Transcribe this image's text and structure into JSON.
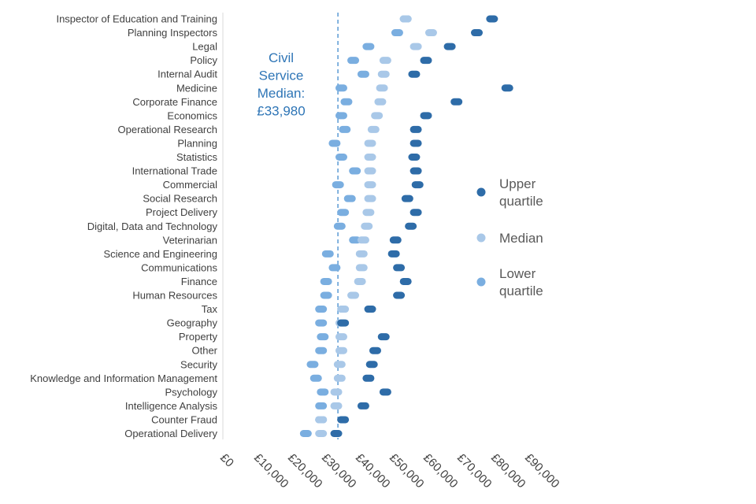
{
  "chart_data": {
    "type": "scatter",
    "categories": [
      "Inspector of Education and Training",
      "Planning Inspectors",
      "Legal",
      "Policy",
      "Internal Audit",
      "Medicine",
      "Corporate Finance",
      "Economics",
      "Operational Research",
      "Planning",
      "Statistics",
      "International Trade",
      "Commercial",
      "Social Research",
      "Project Delivery",
      "Digital, Data and Technology",
      "Veterinarian",
      "Science and Engineering",
      "Communications",
      "Finance",
      "Human Resources",
      "Tax",
      "Geography",
      "Property",
      "Other",
      "Security",
      "Knowledge and Information Management",
      "Psychology",
      "Intelligence Analysis",
      "Counter Fraud",
      "Operational Delivery"
    ],
    "series": [
      {
        "name": "Upper quartile",
        "color": "#2e6ca8",
        "values": [
          79500,
          75000,
          67000,
          60000,
          56500,
          84000,
          69000,
          60000,
          57000,
          57000,
          56500,
          57000,
          57500,
          54500,
          57000,
          55500,
          51000,
          50500,
          52000,
          54000,
          52000,
          43500,
          35500,
          47500,
          45000,
          44000,
          43000,
          48000,
          41500,
          35500,
          33500
        ]
      },
      {
        "name": "Median",
        "color": "#a9c8e8",
        "values": [
          54000,
          61500,
          57000,
          48000,
          47500,
          47000,
          46500,
          45500,
          44500,
          43500,
          43500,
          43500,
          43500,
          43500,
          43000,
          42500,
          41500,
          41000,
          41000,
          40500,
          38500,
          35500,
          35000,
          35000,
          35000,
          34500,
          34500,
          33500,
          33500,
          29000,
          29000
        ]
      },
      {
        "name": "Lower quartile",
        "color": "#7aaee0",
        "values": [
          54000,
          51500,
          43000,
          38500,
          41500,
          35000,
          36500,
          35000,
          36000,
          33000,
          35000,
          39000,
          34000,
          37500,
          35500,
          34500,
          39000,
          31000,
          33000,
          30500,
          30500,
          29000,
          29000,
          29500,
          29000,
          26500,
          27500,
          29500,
          29000,
          29000,
          24500
        ]
      }
    ],
    "xlim": [
      0,
      90000
    ],
    "x_ticks": [
      "£0",
      "£10,000",
      "£20,000",
      "£30,000",
      "£40,000",
      "£50,000",
      "£60,000",
      "£70,000",
      "£80,000",
      "£90,000"
    ],
    "x_tick_values": [
      0,
      10000,
      20000,
      30000,
      40000,
      50000,
      60000,
      70000,
      80000,
      90000
    ],
    "reference_line": {
      "value": 33980,
      "color": "#5b9bd5",
      "label_lines": [
        "Civil",
        "Service",
        "Median:",
        "£33,980"
      ]
    },
    "legend": {
      "placement": "right",
      "items": [
        {
          "series": 0,
          "lines": [
            "Upper",
            "quartile"
          ]
        },
        {
          "series": 1,
          "lines": [
            "Median"
          ]
        },
        {
          "series": 2,
          "lines": [
            "Lower",
            "quartile"
          ]
        }
      ]
    },
    "grid": false
  }
}
